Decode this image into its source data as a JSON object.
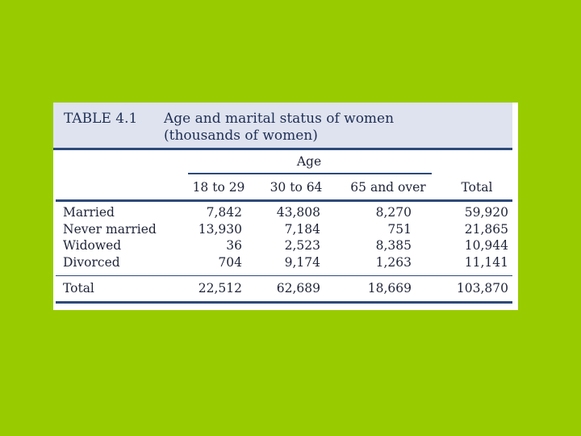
{
  "table": {
    "label": "TABLE 4.1",
    "title_line1": "Age and marital status of women",
    "title_line2": "(thousands of women)",
    "group_header": "Age",
    "columns": [
      "18 to 29",
      "30 to 64",
      "65 and over",
      "Total"
    ],
    "rows": [
      {
        "label": "Married",
        "values": [
          "7,842",
          "43,808",
          "8,270",
          "59,920"
        ]
      },
      {
        "label": "Never married",
        "values": [
          "13,930",
          "7,184",
          "751",
          "21,865"
        ]
      },
      {
        "label": "Widowed",
        "values": [
          "36",
          "2,523",
          "8,385",
          "10,944"
        ]
      },
      {
        "label": "Divorced",
        "values": [
          "704",
          "9,174",
          "1,263",
          "11,141"
        ]
      }
    ],
    "total_row": {
      "label": "Total",
      "values": [
        "22,512",
        "62,689",
        "18,669",
        "103,870"
      ]
    }
  },
  "colors": {
    "background": "#99cc00",
    "title_band": "#dfe3ef",
    "rule": "#2d4a7a",
    "text": "#1e2438"
  }
}
